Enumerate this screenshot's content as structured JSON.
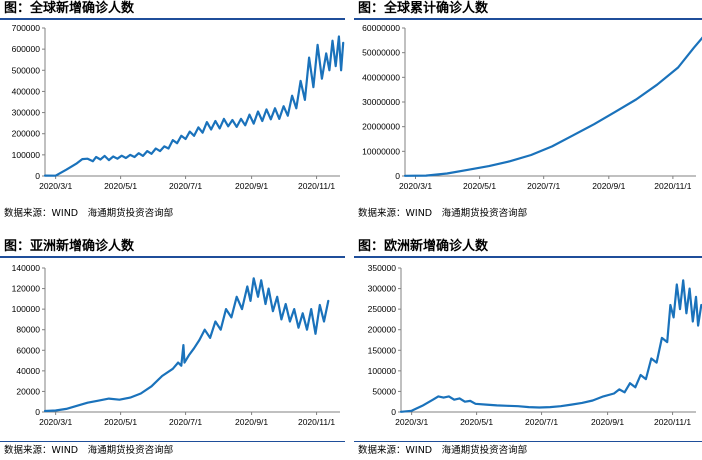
{
  "panels": [
    {
      "title": "图：全球新增确诊人数",
      "source": "数据来源：WIND　海通期货投资咨询部",
      "chart_data": {
        "type": "line",
        "color": "#1a72bb",
        "yticks": [
          "0",
          "100000",
          "200000",
          "300000",
          "400000",
          "500000",
          "600000",
          "700000"
        ],
        "ylim": [
          0,
          700000
        ],
        "xticks": [
          "2020/3/1",
          "2020/5/1",
          "2020/7/1",
          "2020/9/1",
          "2020/11/1"
        ],
        "x_start": "2020/2/20",
        "x_end": "2020/11/23",
        "series": [
          {
            "values": [
              [
                0,
                2000
              ],
              [
                10,
                1500
              ],
              [
                20,
                30000
              ],
              [
                30,
                60000
              ],
              [
                35,
                80000
              ],
              [
                40,
                82000
              ],
              [
                45,
                70000
              ],
              [
                48,
                90000
              ],
              [
                52,
                78000
              ],
              [
                56,
                95000
              ],
              [
                60,
                75000
              ],
              [
                64,
                92000
              ],
              [
                68,
                82000
              ],
              [
                72,
                96000
              ],
              [
                76,
                85000
              ],
              [
                80,
                100000
              ],
              [
                84,
                90000
              ],
              [
                88,
                108000
              ],
              [
                92,
                95000
              ],
              [
                96,
                118000
              ],
              [
                100,
                105000
              ],
              [
                104,
                130000
              ],
              [
                108,
                118000
              ],
              [
                112,
                140000
              ],
              [
                116,
                130000
              ],
              [
                120,
                170000
              ],
              [
                124,
                155000
              ],
              [
                128,
                190000
              ],
              [
                132,
                175000
              ],
              [
                136,
                210000
              ],
              [
                140,
                190000
              ],
              [
                144,
                230000
              ],
              [
                148,
                205000
              ],
              [
                152,
                255000
              ],
              [
                156,
                220000
              ],
              [
                160,
                260000
              ],
              [
                164,
                225000
              ],
              [
                168,
                270000
              ],
              [
                172,
                235000
              ],
              [
                176,
                265000
              ],
              [
                180,
                232000
              ],
              [
                184,
                270000
              ],
              [
                188,
                240000
              ],
              [
                192,
                290000
              ],
              [
                196,
                248000
              ],
              [
                200,
                305000
              ],
              [
                204,
                260000
              ],
              [
                208,
                315000
              ],
              [
                212,
                268000
              ],
              [
                216,
                320000
              ],
              [
                220,
                270000
              ],
              [
                224,
                330000
              ],
              [
                228,
                285000
              ],
              [
                232,
                380000
              ],
              [
                236,
                320000
              ],
              [
                240,
                450000
              ],
              [
                244,
                360000
              ],
              [
                248,
                560000
              ],
              [
                252,
                420000
              ],
              [
                256,
                620000
              ],
              [
                260,
                460000
              ],
              [
                264,
                580000
              ],
              [
                267,
                500000
              ],
              [
                270,
                640000
              ],
              [
                273,
                520000
              ],
              [
                276,
                660000
              ],
              [
                278,
                500000
              ],
              [
                280,
                630000
              ]
            ]
          }
        ]
      }
    },
    {
      "title": "图：全球累计确诊人数",
      "source": "数据来源：WIND　海通期货投资咨询部",
      "chart_data": {
        "type": "line",
        "color": "#1a72bb",
        "yticks": [
          "0",
          "10000000",
          "20000000",
          "30000000",
          "40000000",
          "50000000",
          "60000000"
        ],
        "ylim": [
          0,
          60000000
        ],
        "xticks": [
          "2020/3/1",
          "2020/5/1",
          "2020/7/1",
          "2020/9/1",
          "2020/11/1"
        ],
        "x_start": "2020/2/20",
        "x_end": "2020/11/23",
        "series": [
          {
            "values": [
              [
                0,
                80000
              ],
              [
                20,
                150000
              ],
              [
                40,
                1000000
              ],
              [
                60,
                2500000
              ],
              [
                80,
                4000000
              ],
              [
                100,
                6000000
              ],
              [
                120,
                8500000
              ],
              [
                140,
                12000000
              ],
              [
                160,
                16500000
              ],
              [
                180,
                21000000
              ],
              [
                200,
                26000000
              ],
              [
                220,
                31000000
              ],
              [
                240,
                37000000
              ],
              [
                260,
                44000000
              ],
              [
                275,
                52000000
              ],
              [
                285,
                57000000
              ]
            ]
          }
        ]
      }
    },
    {
      "title": "图：亚洲新增确诊人数",
      "source": "数据来源：WIND　海通期货投资咨询部",
      "chart_data": {
        "type": "line",
        "color": "#1a72bb",
        "yticks": [
          "0",
          "20000",
          "40000",
          "60000",
          "80000",
          "100000",
          "120000",
          "140000"
        ],
        "ylim": [
          0,
          140000
        ],
        "xticks": [
          "2020/3/1",
          "2020/5/1",
          "2020/7/1",
          "2020/9/1",
          "2020/11/1"
        ],
        "x_start": "2020/2/20",
        "x_end": "2020/11/23",
        "series": [
          {
            "values": [
              [
                0,
                1000
              ],
              [
                10,
                1500
              ],
              [
                20,
                3000
              ],
              [
                30,
                6000
              ],
              [
                40,
                9000
              ],
              [
                50,
                11000
              ],
              [
                60,
                13000
              ],
              [
                70,
                12000
              ],
              [
                80,
                14000
              ],
              [
                90,
                18000
              ],
              [
                100,
                25000
              ],
              [
                110,
                35000
              ],
              [
                120,
                42000
              ],
              [
                125,
                48000
              ],
              [
                128,
                45000
              ],
              [
                130,
                65000
              ],
              [
                131,
                48000
              ],
              [
                135,
                55000
              ],
              [
                140,
                62000
              ],
              [
                145,
                70000
              ],
              [
                150,
                80000
              ],
              [
                155,
                72000
              ],
              [
                160,
                88000
              ],
              [
                165,
                80000
              ],
              [
                170,
                100000
              ],
              [
                175,
                92000
              ],
              [
                180,
                112000
              ],
              [
                185,
                100000
              ],
              [
                190,
                122000
              ],
              [
                193,
                108000
              ],
              [
                196,
                130000
              ],
              [
                200,
                112000
              ],
              [
                203,
                128000
              ],
              [
                207,
                105000
              ],
              [
                210,
                120000
              ],
              [
                214,
                98000
              ],
              [
                218,
                112000
              ],
              [
                222,
                90000
              ],
              [
                226,
                105000
              ],
              [
                230,
                88000
              ],
              [
                234,
                100000
              ],
              [
                238,
                82000
              ],
              [
                242,
                96000
              ],
              [
                246,
                80000
              ],
              [
                250,
                100000
              ],
              [
                254,
                76000
              ],
              [
                258,
                104000
              ],
              [
                262,
                88000
              ],
              [
                266,
                108000
              ]
            ]
          }
        ]
      }
    },
    {
      "title": "图：欧洲新增确诊人数",
      "source": "数据来源：WIND　海通期货投资咨询部",
      "chart_data": {
        "type": "line",
        "color": "#1a72bb",
        "yticks": [
          "0",
          "50000",
          "100000",
          "150000",
          "200000",
          "250000",
          "300000",
          "350000"
        ],
        "ylim": [
          0,
          350000
        ],
        "xticks": [
          "2020/3/1",
          "2020/5/1",
          "2020/7/1",
          "2020/9/1",
          "2020/11/1"
        ],
        "x_start": "2020/2/20",
        "x_end": "2020/11/23",
        "series": [
          {
            "values": [
              [
                0,
                500
              ],
              [
                10,
                3000
              ],
              [
                20,
                15000
              ],
              [
                30,
                30000
              ],
              [
                35,
                38000
              ],
              [
                40,
                35000
              ],
              [
                45,
                38000
              ],
              [
                50,
                30000
              ],
              [
                55,
                33000
              ],
              [
                60,
                25000
              ],
              [
                65,
                27000
              ],
              [
                70,
                20000
              ],
              [
                80,
                18000
              ],
              [
                90,
                16000
              ],
              [
                100,
                15000
              ],
              [
                110,
                14000
              ],
              [
                120,
                12000
              ],
              [
                130,
                11000
              ],
              [
                140,
                12000
              ],
              [
                150,
                14000
              ],
              [
                160,
                18000
              ],
              [
                170,
                22000
              ],
              [
                180,
                28000
              ],
              [
                190,
                38000
              ],
              [
                200,
                45000
              ],
              [
                205,
                55000
              ],
              [
                210,
                48000
              ],
              [
                215,
                70000
              ],
              [
                220,
                60000
              ],
              [
                225,
                90000
              ],
              [
                230,
                80000
              ],
              [
                235,
                130000
              ],
              [
                240,
                120000
              ],
              [
                245,
                180000
              ],
              [
                250,
                170000
              ],
              [
                253,
                260000
              ],
              [
                256,
                230000
              ],
              [
                259,
                310000
              ],
              [
                262,
                250000
              ],
              [
                265,
                320000
              ],
              [
                268,
                240000
              ],
              [
                271,
                300000
              ],
              [
                274,
                220000
              ],
              [
                277,
                280000
              ],
              [
                279,
                210000
              ],
              [
                282,
                260000
              ]
            ]
          }
        ]
      }
    }
  ]
}
